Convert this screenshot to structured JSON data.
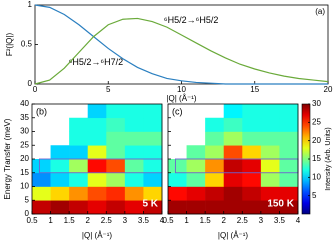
{
  "chart_data": [
    {
      "type": "line",
      "xlabel": "|Q| (Å⁻¹)",
      "ylabel": "F²(|Q|)",
      "panel_label": "(a)",
      "x": [
        0,
        1,
        2,
        3,
        4,
        5,
        6,
        7,
        8,
        9,
        10,
        11,
        12,
        13,
        14,
        15,
        16,
        17,
        18,
        19,
        20
      ],
      "series": [
        {
          "name": "⁶H5/2→⁶H7/2",
          "color": "#2a7fc0",
          "label_at": [
            2.3,
            0.27
          ],
          "values": [
            1.0,
            0.97,
            0.88,
            0.75,
            0.6,
            0.45,
            0.32,
            0.21,
            0.13,
            0.07,
            0.04,
            0.02,
            0.01,
            0,
            0,
            0,
            0,
            0,
            0,
            0,
            0
          ]
        },
        {
          "name": "⁶H5/2→⁶H5/2",
          "color": "#6aaa3a",
          "label_at": [
            8.8,
            0.8
          ],
          "values": [
            0,
            0.05,
            0.2,
            0.4,
            0.6,
            0.75,
            0.82,
            0.83,
            0.79,
            0.72,
            0.62,
            0.52,
            0.42,
            0.33,
            0.25,
            0.19,
            0.14,
            0.1,
            0.07,
            0.05,
            0.03
          ]
        }
      ],
      "xlim": [
        0,
        20
      ],
      "xticks": [
        0,
        5,
        10,
        15,
        20
      ],
      "ylim": [
        0,
        1
      ],
      "yticks": [
        0,
        0.5,
        1
      ]
    },
    {
      "type": "heatmap",
      "xlabel": "|Q| (Å⁻¹)",
      "ylabel": "Energy Transfer (meV)",
      "zlabel": "Intensity (Arb. Units)",
      "xlim": [
        0.5,
        4
      ],
      "xticks": [
        0.5,
        1,
        1.5,
        2,
        2.5,
        3,
        3.5,
        4
      ],
      "ylim": [
        0,
        40
      ],
      "yticks": [
        0,
        5,
        10,
        15,
        20,
        25,
        30,
        35,
        40
      ],
      "zlim": [
        0,
        30
      ],
      "zticks": [
        5,
        10,
        15,
        20,
        25,
        30
      ],
      "colormap": "jet",
      "xbins": [
        0.5,
        1,
        1.5,
        2,
        2.5,
        3,
        3.5,
        4
      ],
      "ybins": [
        0,
        5,
        10,
        15,
        20,
        25,
        30,
        35,
        40
      ],
      "region": {
        "xlim": [
          0.7,
          4
        ],
        "ylim": [
          15,
          20
        ],
        "color": "#7060d0"
      },
      "panels": [
        {
          "label": "(b)",
          "annotation": "5 K",
          "z": [
            [
              28,
              29,
              28,
              27,
              28,
              27,
              28
            ],
            [
              18,
              20,
              22,
              24,
              25,
              22,
              20
            ],
            [
              8,
              10,
              12,
              18,
              16,
              12,
              10
            ],
            [
              10,
              12,
              16,
              26,
              24,
              14,
              12
            ],
            [
              null,
              10,
              10,
              18,
              14,
              12,
              12
            ],
            [
              null,
              null,
              12,
              12,
              14,
              14,
              14
            ],
            [
              null,
              null,
              12,
              12,
              13,
              12,
              12
            ],
            [
              null,
              null,
              null,
              10,
              12,
              12,
              12
            ]
          ]
        },
        {
          "label": "(c)",
          "annotation": "150 K",
          "z": [
            [
              29,
              29,
              29,
              29,
              29,
              29,
              29
            ],
            [
              26,
              27,
              28,
              29,
              28,
              27,
              27
            ],
            [
              12,
              14,
              20,
              27,
              26,
              16,
              14
            ],
            [
              14,
              16,
              22,
              28,
              27,
              18,
              14
            ],
            [
              null,
              14,
              16,
              24,
              20,
              16,
              14
            ],
            [
              null,
              null,
              14,
              16,
              14,
              14,
              14
            ],
            [
              null,
              null,
              12,
              13,
              12,
              12,
              12
            ],
            [
              null,
              null,
              null,
              11,
              12,
              12,
              12
            ]
          ]
        }
      ]
    }
  ]
}
